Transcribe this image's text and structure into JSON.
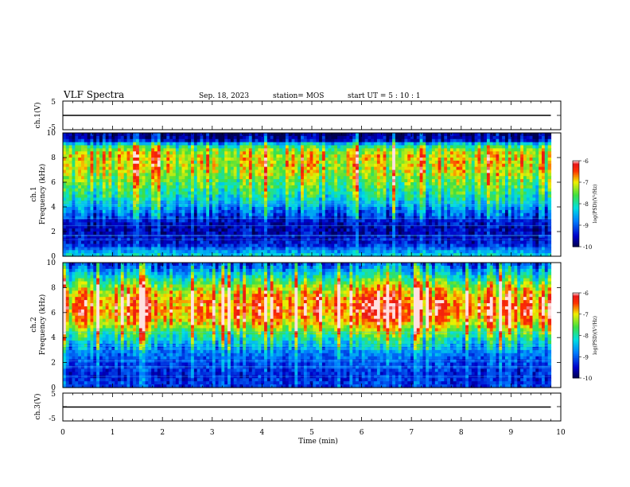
{
  "header": {
    "title": "VLF Spectra",
    "date": "Sep. 18, 2023",
    "station": "station= MOS",
    "start": "start  UT =   5 : 10 : 1"
  },
  "chart_data": [
    {
      "type": "line",
      "ylabel": "ch.1(V)",
      "xlim": [
        0,
        10
      ],
      "ylim": [
        -5,
        5
      ],
      "yticks": [
        "5",
        "-5"
      ],
      "series": [
        {
          "x": [
            0,
            9.8
          ],
          "y": [
            0,
            0
          ]
        }
      ]
    },
    {
      "type": "heatmap",
      "ylabel": "ch.1\nFrequency (kHz)",
      "xlim": [
        0,
        10
      ],
      "ylim": [
        0,
        10
      ],
      "yticks": [
        "0",
        "2",
        "4",
        "6",
        "8",
        "10"
      ],
      "data_xmax": 9.8,
      "colorbar": {
        "label": "log(PSD)(V²/Hz)",
        "min": -10,
        "max": -6,
        "ticks": [
          "-6",
          "-7",
          "-8",
          "-9",
          "-10"
        ]
      },
      "profile": [
        {
          "f": 0.0,
          "psd": -8.2
        },
        {
          "f": 0.5,
          "psd": -8.8
        },
        {
          "f": 1.0,
          "psd": -9.4
        },
        {
          "f": 1.5,
          "psd": -9.5
        },
        {
          "f": 2.0,
          "psd": -9.6
        },
        {
          "f": 2.5,
          "psd": -9.6
        },
        {
          "f": 3.0,
          "psd": -9.3
        },
        {
          "f": 3.5,
          "psd": -9.0
        },
        {
          "f": 4.0,
          "psd": -8.6
        },
        {
          "f": 5.0,
          "psd": -8.0
        },
        {
          "f": 6.0,
          "psd": -7.6
        },
        {
          "f": 7.0,
          "psd": -7.2
        },
        {
          "f": 8.0,
          "psd": -7.1
        },
        {
          "f": 8.5,
          "psd": -7.3
        },
        {
          "f": 9.0,
          "psd": -8.0
        },
        {
          "f": 9.4,
          "psd": -9.6
        },
        {
          "f": 10.0,
          "psd": -10.0
        }
      ]
    },
    {
      "type": "heatmap",
      "ylabel": "ch.2\nFrequency (kHz)",
      "xlim": [
        0,
        10
      ],
      "ylim": [
        0,
        10
      ],
      "yticks": [
        "0",
        "2",
        "4",
        "6",
        "8",
        "10"
      ],
      "data_xmax": 9.8,
      "colorbar": {
        "label": "log(PSD)(V²/Hz)",
        "min": -10,
        "max": -6,
        "ticks": [
          "-6",
          "-7",
          "-8",
          "-9",
          "-10"
        ]
      },
      "profile": [
        {
          "f": 0.0,
          "psd": -9.2
        },
        {
          "f": 1.0,
          "psd": -9.3
        },
        {
          "f": 2.0,
          "psd": -9.1
        },
        {
          "f": 3.0,
          "psd": -8.7
        },
        {
          "f": 4.0,
          "psd": -8.0
        },
        {
          "f": 5.0,
          "psd": -7.0
        },
        {
          "f": 6.0,
          "psd": -6.5
        },
        {
          "f": 7.0,
          "psd": -6.6
        },
        {
          "f": 8.0,
          "psd": -7.2
        },
        {
          "f": 9.0,
          "psd": -8.2
        },
        {
          "f": 10.0,
          "psd": -9.2
        }
      ]
    },
    {
      "type": "line",
      "ylabel": "ch.3(V)",
      "xlabel": "Time  (min)",
      "xlim": [
        0,
        10
      ],
      "ylim": [
        -5,
        5
      ],
      "yticks": [
        "5",
        "-5"
      ],
      "xticks": [
        "0",
        "1",
        "2",
        "3",
        "4",
        "5",
        "6",
        "7",
        "8",
        "9",
        "10"
      ],
      "series": [
        {
          "x": [
            0,
            9.8
          ],
          "y": [
            0,
            0
          ]
        }
      ]
    }
  ]
}
